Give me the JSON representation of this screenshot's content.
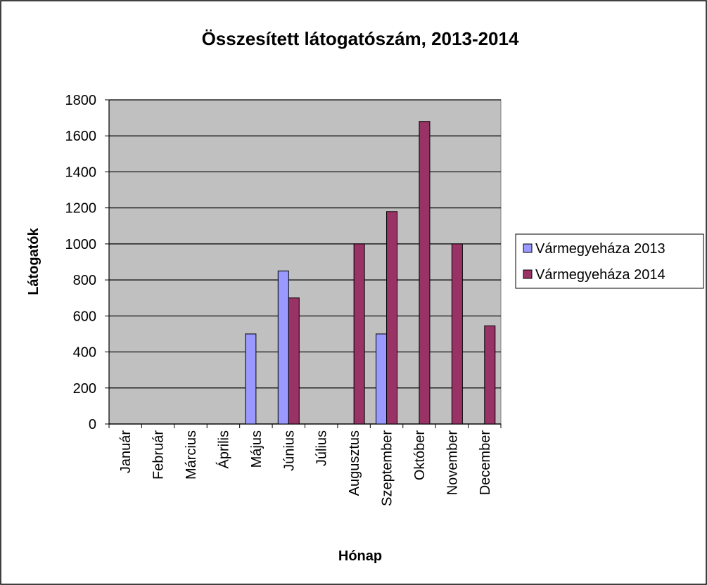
{
  "chart_data": {
    "type": "bar",
    "title": "Összesített látogatószám, 2013-2014",
    "x_label": "Hónap",
    "y_label": "Látogatók",
    "categories": [
      "Január",
      "Február",
      "Március",
      "Április",
      "Május",
      "Június",
      "Július",
      "Augusztus",
      "Szeptember",
      "Október",
      "November",
      "December"
    ],
    "series": [
      {
        "name": "Vármegyeháza 2013",
        "color": "#9999ff",
        "values": [
          null,
          null,
          null,
          null,
          500,
          850,
          null,
          null,
          500,
          null,
          null,
          null
        ]
      },
      {
        "name": "Vármegyeháza 2014",
        "color": "#993366",
        "values": [
          null,
          null,
          null,
          null,
          null,
          700,
          null,
          1000,
          1180,
          1680,
          1000,
          545
        ]
      }
    ],
    "ylim": [
      0,
      1800
    ],
    "yticks": [
      0,
      200,
      400,
      600,
      800,
      1000,
      1200,
      1400,
      1600,
      1800
    ],
    "grid": true,
    "legend": "right"
  }
}
